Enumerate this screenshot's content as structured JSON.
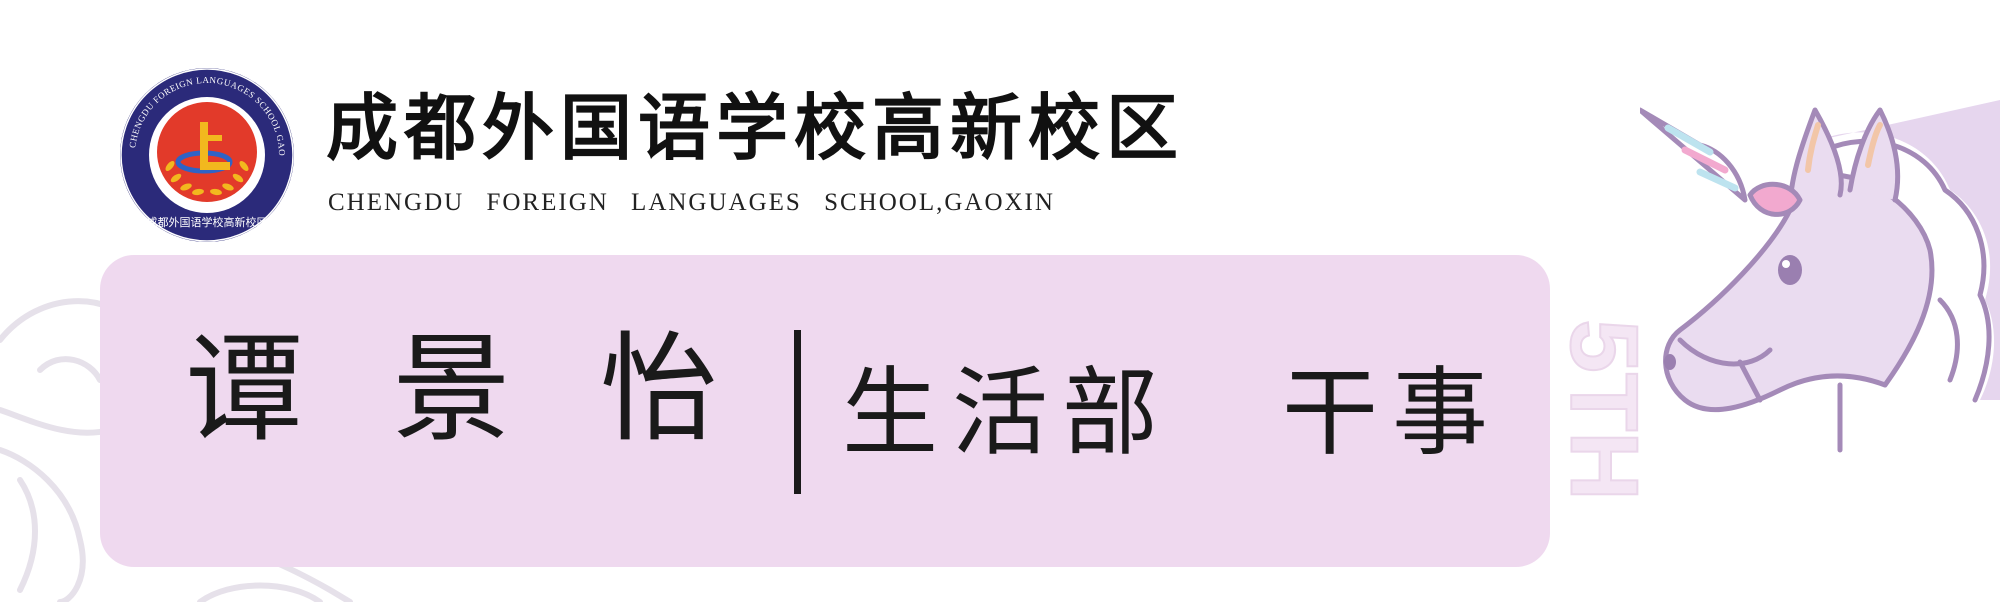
{
  "school": {
    "name_cn": "成都外国语学校高新校区",
    "name_en": "CHENGDU FOREIGN LANGUAGES SCHOOL,GAOXIN",
    "logo_ring_text": "CHENGDU FOREIGN LANGUAGES SCHOOL GAOXIN",
    "logo_seal_cn": "成都外国语学校高新校区"
  },
  "card": {
    "person_name": "谭 景 怡",
    "department": "生活部",
    "title": "干事"
  },
  "decoration": {
    "vertical_text": "5TH"
  },
  "colors": {
    "card_bg": "#efd9ef",
    "logo_navy": "#2b2a7a",
    "logo_red": "#e23a2a",
    "logo_gold": "#f2b81e",
    "unicorn_line": "#a48ab8",
    "unicorn_fill": "#eadcf0",
    "horn_pink": "#f2a9cf",
    "horn_blue": "#bde3ef",
    "text_dark": "#1a1a1a"
  }
}
